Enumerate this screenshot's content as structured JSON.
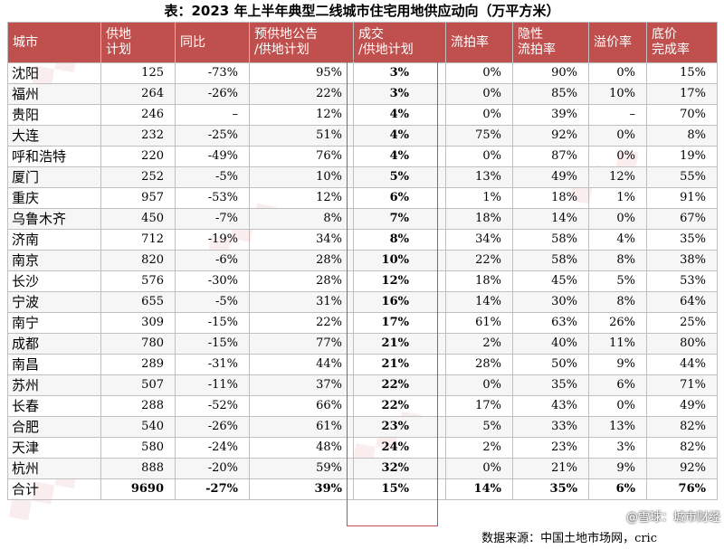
{
  "title": "表：2023 年上半年典型二线城市住宅用地供应动向（万平方米）",
  "headers": [
    [
      "城市",
      ""
    ],
    [
      "供地",
      "计划"
    ],
    [
      "同比",
      ""
    ],
    [
      "预供地公告",
      "/供地计划"
    ],
    [
      "成交",
      "/供地计划"
    ],
    [
      "流拍率",
      ""
    ],
    [
      "隐性",
      "流拍率"
    ],
    [
      "溢价率",
      ""
    ],
    [
      "底价",
      "完成率"
    ]
  ],
  "rows": [
    [
      "沈阳",
      "125",
      "-73%",
      "95%",
      "3%",
      "0%",
      "90%",
      "0%",
      "15%"
    ],
    [
      "福州",
      "264",
      "-26%",
      "22%",
      "3%",
      "0%",
      "85%",
      "10%",
      "17%"
    ],
    [
      "贵阳",
      "246",
      "–",
      "12%",
      "4%",
      "0%",
      "39%",
      "–",
      "70%"
    ],
    [
      "大连",
      "232",
      "-25%",
      "51%",
      "4%",
      "75%",
      "92%",
      "0%",
      "8%"
    ],
    [
      "呼和浩特",
      "220",
      "-49%",
      "76%",
      "4%",
      "0%",
      "87%",
      "0%",
      "19%"
    ],
    [
      "厦门",
      "252",
      "-5%",
      "10%",
      "5%",
      "13%",
      "49%",
      "12%",
      "55%"
    ],
    [
      "重庆",
      "957",
      "-53%",
      "12%",
      "6%",
      "1%",
      "18%",
      "1%",
      "91%"
    ],
    [
      "乌鲁木齐",
      "450",
      "-7%",
      "8%",
      "7%",
      "18%",
      "14%",
      "0%",
      "67%"
    ],
    [
      "济南",
      "712",
      "-19%",
      "34%",
      "8%",
      "34%",
      "58%",
      "4%",
      "35%"
    ],
    [
      "南京",
      "820",
      "-6%",
      "28%",
      "10%",
      "22%",
      "58%",
      "8%",
      "38%"
    ],
    [
      "长沙",
      "576",
      "-30%",
      "28%",
      "12%",
      "18%",
      "45%",
      "5%",
      "53%"
    ],
    [
      "宁波",
      "655",
      "-5%",
      "31%",
      "16%",
      "14%",
      "30%",
      "8%",
      "64%"
    ],
    [
      "南宁",
      "309",
      "-15%",
      "22%",
      "17%",
      "61%",
      "63%",
      "26%",
      "25%"
    ],
    [
      "成都",
      "780",
      "-15%",
      "77%",
      "21%",
      "2%",
      "40%",
      "11%",
      "80%"
    ],
    [
      "南昌",
      "289",
      "-31%",
      "44%",
      "21%",
      "28%",
      "50%",
      "9%",
      "44%"
    ],
    [
      "苏州",
      "507",
      "-11%",
      "37%",
      "22%",
      "0%",
      "35%",
      "6%",
      "71%"
    ],
    [
      "长春",
      "288",
      "-52%",
      "66%",
      "22%",
      "17%",
      "43%",
      "0%",
      "49%"
    ],
    [
      "合肥",
      "540",
      "-26%",
      "61%",
      "23%",
      "5%",
      "33%",
      "13%",
      "82%"
    ],
    [
      "天津",
      "580",
      "-24%",
      "48%",
      "24%",
      "2%",
      "23%",
      "3%",
      "82%"
    ],
    [
      "杭州",
      "888",
      "-20%",
      "59%",
      "32%",
      "0%",
      "21%",
      "9%",
      "92%"
    ],
    [
      "合计",
      "9690",
      "-27%",
      "39%",
      "15%",
      "14%",
      "35%",
      "6%",
      "76%"
    ]
  ],
  "source": "数据来源：中国土地市场网，cric",
  "brand": "@雪球：城市财经",
  "colors": {
    "header_bg": "#c0504d",
    "header_text": "#ffffff",
    "highlight_border": "#c0504d"
  }
}
